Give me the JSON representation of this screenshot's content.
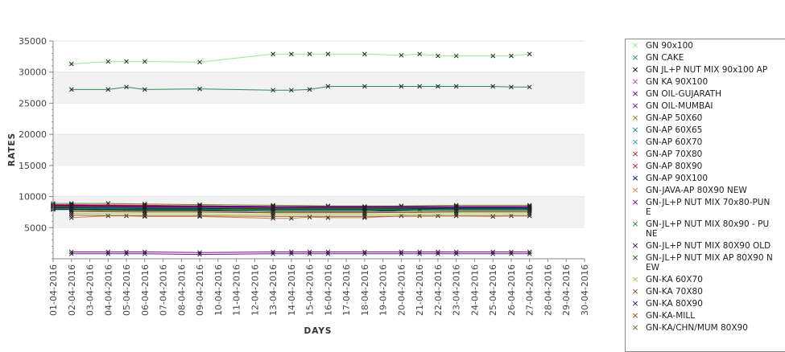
{
  "chart_data": {
    "type": "line",
    "xlabel": "DAYS",
    "ylabel": "RATES",
    "ylim": [
      0,
      35000
    ],
    "yticks": [
      5000,
      10000,
      15000,
      20000,
      25000,
      30000,
      35000
    ],
    "x_tick_labels": [
      "01-04-2016",
      "02-04-2016",
      "03-04-2016",
      "04-04-2016",
      "05-04-2016",
      "06-04-2016",
      "07-04-2016",
      "08-04-2016",
      "09-04-2016",
      "10-04-2016",
      "11-04-2016",
      "12-04-2016",
      "13-04-2016",
      "14-04-2016",
      "15-04-2016",
      "16-04-2016",
      "17-04-2016",
      "18-04-2016",
      "19-04-2016",
      "20-04-2016",
      "21-04-2016",
      "22-04-2016",
      "23-04-2016",
      "24-04-2016",
      "25-04-2016",
      "26-04-2016",
      "27-04-2016",
      "28-04-2016",
      "29-04-2016",
      "30-04-2016"
    ],
    "grid": "alternating horizontal bands",
    "legend_position": "right",
    "series": [
      {
        "name": "GN 90x100",
        "color": "#90ee90",
        "x": [
          "02-04-2016",
          "04-04-2016",
          "05-04-2016",
          "06-04-2016",
          "09-04-2016",
          "13-04-2016",
          "14-04-2016",
          "15-04-2016",
          "16-04-2016",
          "18-04-2016",
          "20-04-2016",
          "21-04-2016",
          "22-04-2016",
          "23-04-2016",
          "25-04-2016",
          "26-04-2016",
          "27-04-2016"
        ],
        "values": [
          31300,
          31700,
          31700,
          31700,
          31600,
          32900,
          32900,
          32900,
          32900,
          32900,
          32700,
          32900,
          32600,
          32600,
          32600,
          32600,
          32900
        ]
      },
      {
        "name": "GN CAKE",
        "color": "#2e8b57",
        "x": [
          "02-04-2016",
          "04-04-2016",
          "05-04-2016",
          "06-04-2016",
          "09-04-2016",
          "13-04-2016",
          "14-04-2016",
          "15-04-2016",
          "16-04-2016",
          "18-04-2016",
          "20-04-2016",
          "21-04-2016",
          "22-04-2016",
          "23-04-2016",
          "25-04-2016",
          "26-04-2016",
          "27-04-2016"
        ],
        "values": [
          27200,
          27200,
          27600,
          27200,
          27300,
          27100,
          27100,
          27200,
          27700,
          27700,
          27700,
          27700,
          27700,
          27700,
          27700,
          27600,
          27600
        ]
      },
      {
        "name": "GN JL+P NUT MIX 90x100 AP",
        "color": "#000000",
        "x": [
          "01-04-2016",
          "02-04-2016",
          "04-04-2016",
          "05-04-2016",
          "06-04-2016",
          "27-04-2016"
        ],
        "values": [
          8000,
          8100,
          8200,
          8000,
          8000,
          8000
        ]
      },
      {
        "name": "GN KA 90X100",
        "color": "#cc44cc",
        "x": [
          "01-04-2016",
          "02-04-2016",
          "06-04-2016",
          "09-04-2016",
          "13-04-2016",
          "16-04-2016",
          "20-04-2016",
          "23-04-2016",
          "27-04-2016"
        ],
        "values": [
          8600,
          8500,
          8500,
          8500,
          8400,
          8400,
          8400,
          8400,
          8300
        ]
      },
      {
        "name": "GN OIL-GUJARATH",
        "color": "#8b008b",
        "x": [
          "02-04-2016",
          "04-04-2016",
          "05-04-2016",
          "06-04-2016",
          "09-04-2016",
          "13-04-2016",
          "14-04-2016",
          "15-04-2016",
          "16-04-2016",
          "18-04-2016",
          "20-04-2016",
          "21-04-2016",
          "22-04-2016",
          "23-04-2016",
          "25-04-2016",
          "26-04-2016",
          "27-04-2016"
        ],
        "values": [
          1100,
          1100,
          1100,
          1100,
          1000,
          1100,
          1100,
          1100,
          1100,
          1100,
          1100,
          1100,
          1100,
          1100,
          1100,
          1100,
          1100
        ]
      },
      {
        "name": "GN OIL-MUMBAI",
        "color": "#6a0dad",
        "x": [
          "02-04-2016",
          "04-04-2016",
          "05-04-2016",
          "06-04-2016",
          "09-04-2016",
          "13-04-2016",
          "14-04-2016",
          "15-04-2016",
          "16-04-2016",
          "18-04-2016",
          "20-04-2016",
          "21-04-2016",
          "22-04-2016",
          "23-04-2016",
          "25-04-2016",
          "26-04-2016",
          "27-04-2016"
        ],
        "values": [
          800,
          800,
          800,
          800,
          700,
          800,
          800,
          800,
          800,
          800,
          800,
          800,
          800,
          800,
          800,
          800,
          800
        ]
      },
      {
        "name": "GN-AP 50X60",
        "color": "#6b8e23",
        "x": [
          "01-04-2016",
          "02-04-2016",
          "04-04-2016",
          "06-04-2016",
          "09-04-2016",
          "13-04-2016",
          "16-04-2016",
          "20-04-2016",
          "23-04-2016",
          "27-04-2016"
        ],
        "values": [
          8900,
          8900,
          8900,
          8800,
          8700,
          8600,
          8500,
          8500,
          8600,
          8600
        ]
      },
      {
        "name": "GN-AP 60X65",
        "color": "#008b8b",
        "x": [
          "01-04-2016",
          "02-04-2016",
          "06-04-2016",
          "09-04-2016",
          "13-04-2016",
          "18-04-2016",
          "23-04-2016",
          "27-04-2016"
        ],
        "values": [
          8300,
          8300,
          8200,
          8100,
          8000,
          8000,
          8100,
          8100
        ]
      },
      {
        "name": "GN-AP 60X70",
        "color": "#20b2aa",
        "x": [
          "01-04-2016",
          "02-04-2016",
          "06-04-2016",
          "09-04-2016",
          "13-04-2016",
          "18-04-2016",
          "23-04-2016",
          "27-04-2016"
        ],
        "values": [
          8100,
          8100,
          8000,
          8000,
          7900,
          7900,
          8000,
          8000
        ]
      },
      {
        "name": "GN-AP 70X80",
        "color": "#b22222",
        "x": [
          "01-04-2016",
          "02-04-2016",
          "06-04-2016",
          "09-04-2016",
          "13-04-2016",
          "18-04-2016",
          "23-04-2016",
          "27-04-2016"
        ],
        "values": [
          8400,
          8400,
          8300,
          8300,
          8200,
          8200,
          8300,
          8300
        ]
      },
      {
        "name": "GN-AP 80X90",
        "color": "#dc143c",
        "x": [
          "01-04-2016",
          "02-04-2016",
          "06-04-2016",
          "09-04-2016",
          "13-04-2016",
          "18-04-2016",
          "23-04-2016",
          "27-04-2016"
        ],
        "values": [
          8700,
          8700,
          8600,
          8500,
          8400,
          8300,
          8400,
          8400
        ]
      },
      {
        "name": "GN-AP 90X100",
        "color": "#00008b",
        "x": [
          "01-04-2016",
          "02-04-2016",
          "06-04-2016",
          "09-04-2016",
          "13-04-2016",
          "18-04-2016",
          "21-04-2016",
          "27-04-2016"
        ],
        "values": [
          7900,
          7900,
          7800,
          7800,
          7600,
          7600,
          7900,
          7900
        ]
      },
      {
        "name": "GN-JAVA-AP 80X90 NEW",
        "color": "#cd853f",
        "x": [
          "02-04-2016",
          "04-04-2016",
          "05-04-2016",
          "06-04-2016",
          "09-04-2016",
          "13-04-2016",
          "14-04-2016",
          "15-04-2016",
          "16-04-2016",
          "18-04-2016",
          "20-04-2016",
          "21-04-2016",
          "22-04-2016",
          "23-04-2016",
          "25-04-2016",
          "26-04-2016",
          "27-04-2016"
        ],
        "values": [
          6600,
          6900,
          6900,
          6800,
          6800,
          6500,
          6500,
          6700,
          6600,
          6600,
          6900,
          6900,
          6900,
          6900,
          6800,
          6900,
          6900
        ]
      },
      {
        "name": "GN-JL+P NUT MIX 70x80-PUNE",
        "color": "#800080",
        "x": [
          "01-04-2016",
          "02-04-2016",
          "06-04-2016",
          "09-04-2016",
          "13-04-2016",
          "18-04-2016",
          "23-04-2016",
          "27-04-2016"
        ],
        "values": [
          8600,
          8600,
          8500,
          8500,
          8400,
          8400,
          8400,
          8400
        ]
      },
      {
        "name": "GN-JL+P NUT MIX 80x90 - PUNE",
        "color": "#228b22",
        "x": [
          "01-04-2016",
          "02-04-2016",
          "06-04-2016",
          "09-04-2016",
          "13-04-2016",
          "18-04-2016",
          "23-04-2016",
          "27-04-2016"
        ],
        "values": [
          8300,
          8300,
          8200,
          8200,
          8100,
          8100,
          8200,
          8200
        ]
      },
      {
        "name": "GN-JL+P NUT MIX 80X90 OLD",
        "color": "#191970",
        "x": [
          "01-04-2016",
          "02-04-2016",
          "06-04-2016",
          "09-04-2016",
          "13-04-2016",
          "18-04-2016",
          "23-04-2016",
          "27-04-2016"
        ],
        "values": [
          8200,
          8200,
          8100,
          8100,
          8000,
          8000,
          8100,
          8100
        ]
      },
      {
        "name": "GN-JL+P NUT MIX AP 80X90 NEW",
        "color": "#006400",
        "x": [
          "01-04-2016",
          "02-04-2016",
          "06-04-2016",
          "09-04-2016",
          "13-04-2016",
          "18-04-2016",
          "23-04-2016",
          "27-04-2016"
        ],
        "values": [
          8000,
          8000,
          7900,
          7900,
          7800,
          7800,
          7900,
          7900
        ]
      },
      {
        "name": "GN-KA 60X70",
        "color": "#9acd32",
        "x": [
          "02-04-2016",
          "06-04-2016",
          "09-04-2016",
          "13-04-2016",
          "18-04-2016",
          "23-04-2016",
          "27-04-2016"
        ],
        "values": [
          7300,
          7200,
          7200,
          7100,
          7100,
          7200,
          7200
        ]
      },
      {
        "name": "GN-KA 70X80",
        "color": "#a0522d",
        "x": [
          "02-04-2016",
          "06-04-2016",
          "09-04-2016",
          "13-04-2016",
          "18-04-2016",
          "23-04-2016",
          "27-04-2016"
        ],
        "values": [
          7000,
          6900,
          6900,
          6800,
          6800,
          6900,
          6900
        ]
      },
      {
        "name": "GN-KA 80X90",
        "color": "#4b0082",
        "x": [
          "01-04-2016",
          "02-04-2016",
          "06-04-2016",
          "09-04-2016",
          "13-04-2016",
          "18-04-2016",
          "23-04-2016",
          "27-04-2016"
        ],
        "values": [
          8500,
          8500,
          8400,
          8400,
          8300,
          8300,
          8300,
          8300
        ]
      },
      {
        "name": "GN-KA-MILL",
        "color": "#8b4513",
        "x": [
          "02-04-2016",
          "06-04-2016",
          "09-04-2016",
          "13-04-2016",
          "18-04-2016",
          "23-04-2016",
          "27-04-2016"
        ],
        "values": [
          7600,
          7500,
          7500,
          7400,
          7400,
          7500,
          7500
        ]
      },
      {
        "name": "GN-KA/CHN/MUM 80X90",
        "color": "#556b2f",
        "x": [
          "02-04-2016",
          "06-04-2016",
          "09-04-2016",
          "13-04-2016",
          "18-04-2016",
          "23-04-2016",
          "27-04-2016"
        ],
        "values": [
          7800,
          7700,
          7700,
          7600,
          7600,
          7700,
          7700
        ]
      }
    ]
  }
}
